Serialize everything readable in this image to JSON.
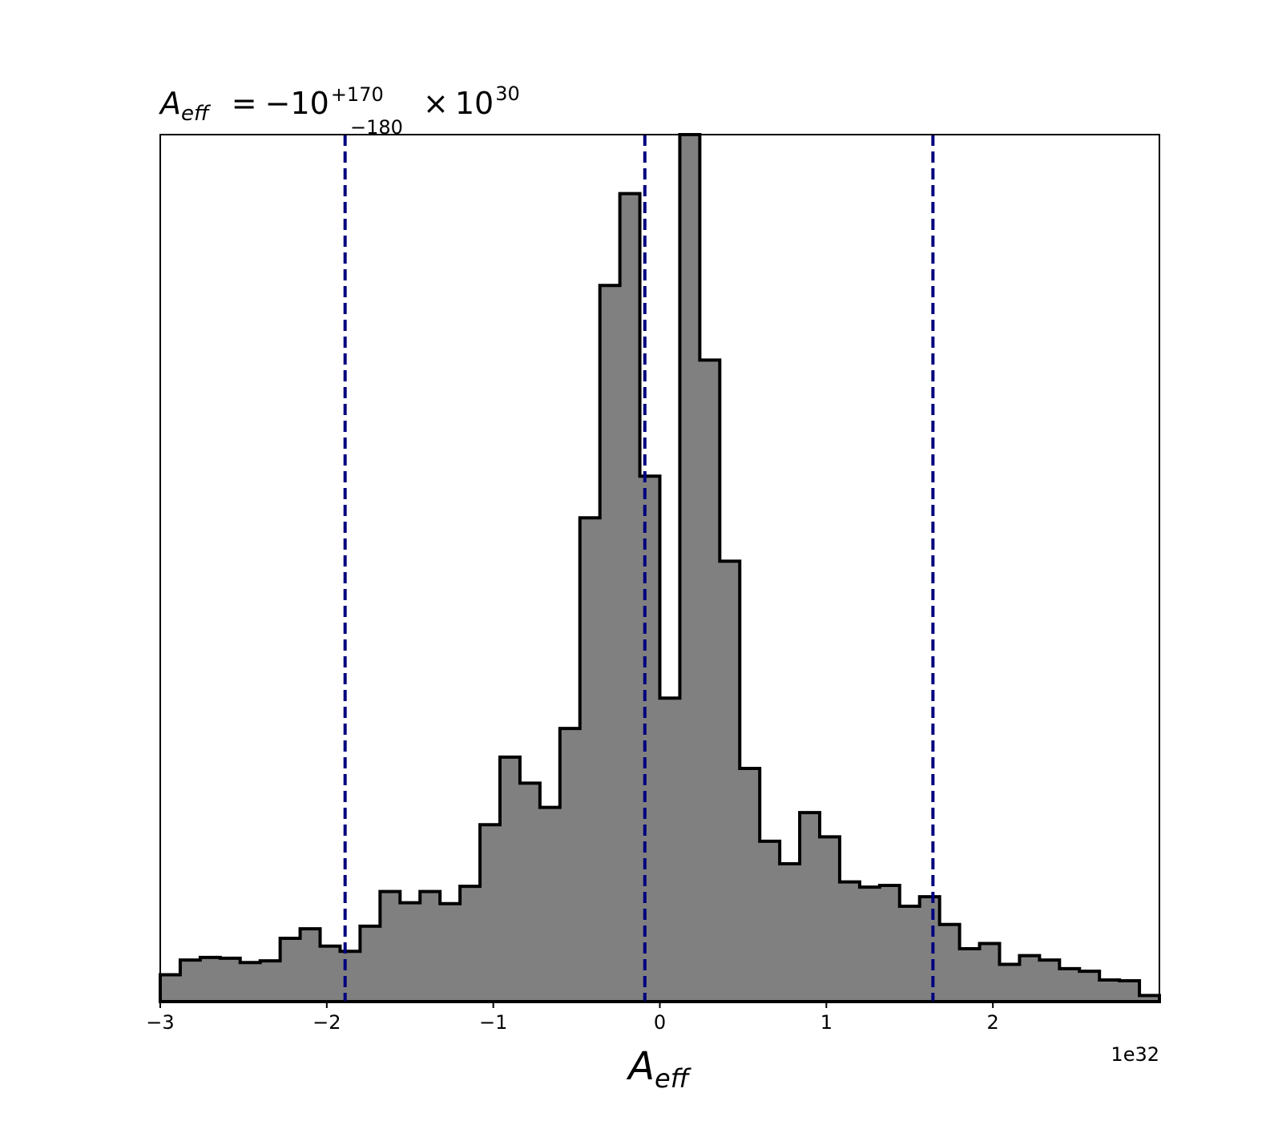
{
  "chart_data": {
    "type": "bar",
    "title": {
      "prefix_symbol": "A",
      "prefix_subscript": "eff",
      "equals": "=",
      "value": "−10",
      "upper_error": "+170",
      "lower_error": "−180",
      "times": "×",
      "scale_base": "10",
      "scale_exponent": "30"
    },
    "xlabel": {
      "symbol": "A",
      "subscript": "eff"
    },
    "ylabel": "",
    "offset_text": "1e32",
    "xlim": [
      -3.0,
      3.0
    ],
    "ylim": [
      0,
      1.0
    ],
    "xticks": [
      {
        "value": -3,
        "label": "−3"
      },
      {
        "value": -2,
        "label": "−2"
      },
      {
        "value": -1,
        "label": "−1"
      },
      {
        "value": 0,
        "label": "0"
      },
      {
        "value": 1,
        "label": "1"
      },
      {
        "value": 2,
        "label": "2"
      }
    ],
    "bin_start": -3.0,
    "bin_width": 0.12,
    "values": [
      0.031,
      0.048,
      0.051,
      0.05,
      0.045,
      0.047,
      0.073,
      0.084,
      0.064,
      0.058,
      0.087,
      0.127,
      0.114,
      0.127,
      0.113,
      0.133,
      0.204,
      0.282,
      0.252,
      0.224,
      0.315,
      0.558,
      0.826,
      0.932,
      0.606,
      0.35,
      1.0,
      0.74,
      0.508,
      0.269,
      0.185,
      0.159,
      0.218,
      0.19,
      0.138,
      0.132,
      0.134,
      0.11,
      0.121,
      0.089,
      0.061,
      0.067,
      0.043,
      0.053,
      0.048,
      0.038,
      0.035,
      0.025,
      0.024,
      0.007
    ],
    "vlines": [
      -1.89,
      -0.09,
      1.64
    ],
    "grid": false,
    "legend": "none",
    "colors": {
      "bar_fill": "#808080",
      "bar_edge": "#000000",
      "vline": "#00007f",
      "axes": "#000000"
    }
  }
}
